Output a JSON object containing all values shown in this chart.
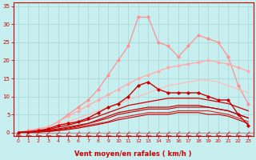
{
  "x": [
    0,
    1,
    2,
    3,
    4,
    5,
    6,
    7,
    8,
    9,
    10,
    11,
    12,
    13,
    14,
    15,
    16,
    17,
    18,
    19,
    20,
    21,
    22,
    23
  ],
  "background_color": "#c8efef",
  "grid_color": "#a8d4d4",
  "xlabel": "Vent moyen/en rafales ( km/h )",
  "xlabel_color": "#cc0000",
  "tick_color": "#cc0000",
  "ylim": [
    -1,
    36
  ],
  "yticks": [
    0,
    5,
    10,
    15,
    20,
    25,
    30,
    35
  ],
  "series": [
    {
      "label": "spiky_pink",
      "color": "#ff9090",
      "linewidth": 0.9,
      "marker": "D",
      "markersize": 2.0,
      "values": [
        0,
        0.5,
        1,
        1.5,
        3,
        5,
        7,
        9,
        12,
        16,
        20,
        24,
        32,
        32,
        25,
        24,
        21,
        24,
        27,
        26,
        25,
        21,
        13,
        8
      ]
    },
    {
      "label": "smooth_pink_upper",
      "color": "#ffaaaa",
      "linewidth": 0.9,
      "marker": "D",
      "markersize": 2.0,
      "values": [
        0,
        0.3,
        0.8,
        1.5,
        3,
        4.5,
        6,
        7.5,
        9,
        10.5,
        12,
        13.5,
        15,
        16,
        17,
        18,
        18.5,
        19,
        19.5,
        20,
        19.5,
        19,
        18,
        17
      ]
    },
    {
      "label": "smooth_pink_lower",
      "color": "#ffbbbb",
      "linewidth": 0.9,
      "marker": null,
      "markersize": 0,
      "values": [
        0,
        0.2,
        0.5,
        1,
        2,
        3,
        4,
        5,
        6,
        7,
        8,
        9,
        10,
        11,
        12,
        13,
        13.5,
        14,
        14.5,
        14.5,
        14,
        13,
        12,
        11
      ]
    },
    {
      "label": "dark_red_spiky",
      "color": "#cc0000",
      "linewidth": 1.0,
      "marker": "D",
      "markersize": 2.0,
      "values": [
        0,
        0.2,
        0.5,
        1,
        2,
        2.5,
        3,
        4,
        5.5,
        7,
        8,
        10,
        13,
        14,
        12,
        11,
        11,
        11,
        11,
        10,
        9,
        9,
        5,
        2
      ]
    },
    {
      "label": "dark_red_smooth1",
      "color": "#cc0000",
      "linewidth": 0.9,
      "marker": null,
      "markersize": 0,
      "values": [
        0,
        0.15,
        0.4,
        0.8,
        1.5,
        2,
        2.8,
        3.5,
        4.5,
        5.5,
        6.5,
        7.5,
        8,
        8.5,
        9,
        9.5,
        9.5,
        9.5,
        9.5,
        9,
        8.5,
        8,
        7,
        6
      ]
    },
    {
      "label": "dark_red_smooth2",
      "color": "#cc0000",
      "linewidth": 0.9,
      "marker": null,
      "markersize": 0,
      "values": [
        0,
        0.1,
        0.3,
        0.6,
        1,
        1.5,
        2,
        2.5,
        3.5,
        4.5,
        5.5,
        6,
        6.5,
        7,
        7,
        7,
        7.5,
        7.5,
        7.5,
        7,
        6.5,
        6,
        5,
        4
      ]
    },
    {
      "label": "dark_red_flat1",
      "color": "#bb0000",
      "linewidth": 0.8,
      "marker": null,
      "markersize": 0,
      "values": [
        0,
        0.08,
        0.2,
        0.4,
        0.8,
        1.2,
        1.8,
        2.5,
        3.2,
        4,
        5,
        5.5,
        6,
        6.5,
        6.5,
        6.5,
        7,
        7,
        7,
        7,
        6.5,
        6,
        5,
        4
      ]
    },
    {
      "label": "dark_red_flat2",
      "color": "#dd2222",
      "linewidth": 0.8,
      "marker": null,
      "markersize": 0,
      "values": [
        0,
        0.05,
        0.15,
        0.3,
        0.6,
        1,
        1.5,
        2,
        2.5,
        3,
        4,
        4.5,
        5,
        5.5,
        5.5,
        5.5,
        6,
        6,
        6,
        6,
        5.5,
        5,
        4,
        3
      ]
    },
    {
      "label": "dark_red_flat3",
      "color": "#bb0000",
      "linewidth": 0.8,
      "marker": null,
      "markersize": 0,
      "values": [
        0,
        0.03,
        0.1,
        0.25,
        0.5,
        0.8,
        1.2,
        1.7,
        2.2,
        2.8,
        3.5,
        4,
        4.5,
        5,
        5,
        5,
        5.5,
        5.5,
        5.5,
        5,
        5,
        4.5,
        3.5,
        2.5
      ]
    }
  ],
  "spine_color": "#cc0000"
}
